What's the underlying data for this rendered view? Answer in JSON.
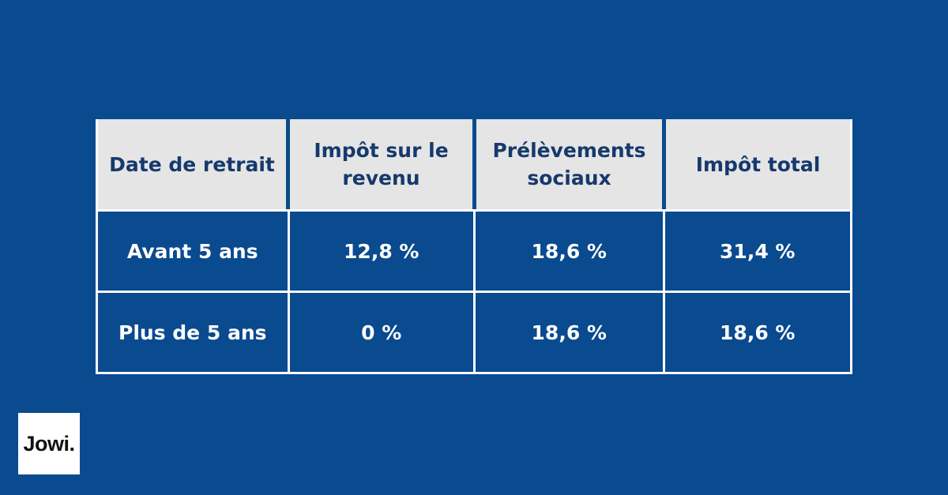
{
  "page": {
    "background_color": "#0a4a8f"
  },
  "logo": {
    "text": "Jowi."
  },
  "table": {
    "header": [
      "Date de retrait",
      "Impôt sur le revenu",
      "Prélèvements sociaux",
      "Impôt total"
    ],
    "rows": [
      [
        "Avant 5 ans",
        "12,8 %",
        "18,6 %",
        "31,4 %"
      ],
      [
        "Plus de 5 ans",
        "0 %",
        "18,6 %",
        "18,6 %"
      ]
    ],
    "colors": {
      "header_background": "#e5e5e5",
      "header_text": "#16396d",
      "cell_background": "#0a4a8f",
      "cell_text": "#ffffff",
      "border": "#ffffff"
    }
  },
  "chart_data": {
    "type": "table",
    "title": "",
    "columns": [
      "Date de retrait",
      "Impôt sur le revenu",
      "Prélèvements sociaux",
      "Impôt total"
    ],
    "rows": [
      {
        "label": "Avant 5 ans",
        "impot_sur_le_revenu": "12,8 %",
        "prelevements_sociaux": "18,6 %",
        "impot_total": "31,4 %"
      },
      {
        "label": "Plus de 5 ans",
        "impot_sur_le_revenu": "0 %",
        "prelevements_sociaux": "18,6 %",
        "impot_total": "18,6 %"
      }
    ]
  }
}
